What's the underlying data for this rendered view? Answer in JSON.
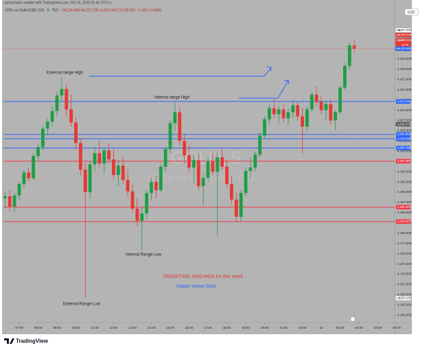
{
  "header": {
    "author_line": "azharshahir created with TradingView.com, Oct 16, 2025 01:41 UTC+1",
    "symbol": "CFDs on Gold (US$ / OZ) · 5 · TVC",
    "ohlc": "O4,226.400 H4,227.200 L4,224.300 C4,225.010 −1.426 (−0.03%)"
  },
  "chart_data": {
    "type": "candlestick",
    "x": [
      "06:15",
      "06:30",
      "06:45",
      "07:00",
      "07:15",
      "07:30",
      "07:45",
      "08:00",
      "08:15",
      "08:30",
      "08:45",
      "09:00",
      "09:15",
      "09:30",
      "09:45",
      "10:00",
      "10:15",
      "10:30",
      "10:45",
      "11:00",
      "11:15",
      "11:30",
      "11:45",
      "12:00",
      "12:15",
      "12:30",
      "12:45",
      "13:00",
      "13:15",
      "13:30",
      "13:45",
      "14:00",
      "14:15",
      "14:30",
      "14:45",
      "15:00",
      "15:15",
      "15:30",
      "15:45",
      "16:00",
      "16:15",
      "16:30",
      "16:45",
      "17:00",
      "17:15",
      "17:30",
      "17:45",
      "18:00",
      "18:15",
      "18:30",
      "18:45",
      "19:00",
      "19:15",
      "19:30",
      "19:45",
      "20:00",
      "20:15",
      "20:30",
      "20:45",
      "21:00",
      "21:15",
      "21:30",
      "21:45",
      "23:00",
      "23:15",
      "23:30",
      "23:45",
      "16",
      "00:15",
      "00:30",
      "00:45",
      "01:00",
      "01:15",
      "01:30",
      "01:45",
      "02:00",
      "02:15",
      "02:30",
      "02:45",
      "03:00",
      "03:15",
      "03:30",
      "03:45",
      "04:00"
    ],
    "open": [
      4188.5,
      4189.0,
      4186.5,
      4189.2,
      4192.0,
      4194.8,
      4193.4,
      4198.8,
      4201.0,
      4205.5,
      4207.2,
      4209.8,
      4213.6,
      4215.2,
      4210.2,
      4207.0,
      4202.0,
      4195.5,
      4190.0,
      4196.8,
      4199.5,
      4197.0,
      4200.2,
      4198.0,
      4194.2,
      4196.5,
      4193.0,
      4190.2,
      4186.0,
      4183.0,
      4184.8,
      4189.8,
      4192.5,
      4190.5,
      4196.2,
      4200.5,
      4206.8,
      4209.5,
      4202.5,
      4199.0,
      4196.0,
      4197.8,
      4191.5,
      4193.5,
      4197.5,
      4195.0,
      4198.5,
      4196.2,
      4192.0,
      4188.2,
      4184.0,
      4189.8,
      4195.2,
      4196.0,
      4199.2,
      4203.8,
      4207.8,
      4210.5,
      4209.0,
      4210.2,
      4208.0,
      4209.5,
      4211.2,
      4208.5,
      4206.0,
      4210.2,
      4213.8,
      4212.0,
      4210.0,
      4211.5,
      4207.5,
      4209.5,
      4215.5,
      4220.8,
      4225.8,
      null,
      null,
      null,
      null,
      null,
      null,
      null,
      null,
      null
    ],
    "high": [
      4190.2,
      4190.5,
      4189.8,
      4192.6,
      4195.5,
      4196.0,
      4199.5,
      4201.8,
      4206.2,
      4208.0,
      4211.0,
      4214.5,
      4217.9,
      4216.4,
      4213.8,
      4208.2,
      4203.0,
      4197.2,
      4197.5,
      4201.2,
      4202.5,
      4201.0,
      4202.0,
      4200.5,
      4197.8,
      4198.5,
      4195.5,
      4192.0,
      4188.5,
      4186.5,
      4190.5,
      4193.5,
      4194.0,
      4197.0,
      4201.0,
      4207.5,
      4212.0,
      4210.8,
      4204.0,
      4201.5,
      4199.0,
      4199.5,
      4194.5,
      4198.5,
      4200.0,
      4199.8,
      4200.8,
      4198.0,
      4194.0,
      4190.0,
      4190.5,
      4196.0,
      4198.5,
      4200.0,
      4204.5,
      4208.5,
      4211.5,
      4212.8,
      4211.0,
      4211.5,
      4210.5,
      4212.5,
      4212.0,
      4210.5,
      4211.0,
      4214.5,
      4215.8,
      4213.5,
      4212.5,
      4212.8,
      4210.0,
      4216.0,
      4221.5,
      4226.5,
      4227.2,
      null,
      null,
      null,
      null,
      null,
      null,
      null,
      null,
      null
    ],
    "low": [
      4186.0,
      4185.2,
      4185.0,
      4188.0,
      4191.0,
      4192.5,
      4193.0,
      4197.5,
      4200.2,
      4203.8,
      4206.0,
      4208.5,
      4212.0,
      4208.5,
      4206.0,
      4200.5,
      4194.0,
      4164.16,
      4188.5,
      4195.0,
      4196.0,
      4194.5,
      4197.0,
      4193.0,
      4191.5,
      4192.0,
      4189.0,
      4185.0,
      4181.8,
      4175.8,
      4183.5,
      4188.0,
      4188.5,
      4190.0,
      4195.0,
      4199.5,
      4205.0,
      4201.5,
      4197.0,
      4195.0,
      4192.0,
      4190.5,
      4186.8,
      4192.5,
      4194.0,
      4179.2,
      4195.5,
      4191.0,
      4187.0,
      4182.6,
      4183.0,
      4189.0,
      4193.5,
      4195.0,
      4198.5,
      4203.0,
      4206.5,
      4208.0,
      4206.8,
      4207.0,
      4206.5,
      4208.0,
      4207.5,
      4199.5,
      4205.0,
      4209.5,
      4211.0,
      4209.0,
      4207.5,
      4206.5,
      4205.2,
      4209.0,
      4215.0,
      4220.0,
      4224.0,
      null,
      null,
      null,
      null,
      null,
      null,
      null,
      null,
      null
    ],
    "close": [
      4189.0,
      4186.5,
      4189.2,
      4192.0,
      4194.8,
      4193.4,
      4198.8,
      4201.0,
      4205.5,
      4207.2,
      4209.8,
      4213.6,
      4215.2,
      4210.2,
      4207.0,
      4202.0,
      4195.5,
      4190.0,
      4196.8,
      4199.5,
      4197.0,
      4200.2,
      4198.0,
      4194.2,
      4196.5,
      4193.0,
      4190.2,
      4186.0,
      4183.0,
      4184.8,
      4189.8,
      4192.5,
      4190.5,
      4196.2,
      4200.5,
      4206.8,
      4209.5,
      4202.5,
      4199.0,
      4196.0,
      4197.8,
      4191.5,
      4193.5,
      4197.5,
      4195.0,
      4198.5,
      4196.2,
      4192.0,
      4188.2,
      4184.0,
      4189.8,
      4195.2,
      4196.0,
      4199.2,
      4203.8,
      4207.8,
      4210.5,
      4209.0,
      4210.2,
      4208.0,
      4209.5,
      4211.2,
      4208.5,
      4206.0,
      4210.2,
      4213.8,
      4212.0,
      4210.0,
      4211.5,
      4207.5,
      4209.5,
      4215.5,
      4220.8,
      4225.8,
      4225.01,
      null,
      null,
      null,
      null,
      null,
      null,
      null,
      null,
      null
    ],
    "up_color": "#1f9d45",
    "down_color": "#e53935",
    "ylim": [
      4158.2,
      4235.2
    ],
    "yticks": [
      {
        "value": 4160,
        "label": "4,160.000"
      },
      {
        "value": 4162.5,
        "label": "4,162.500"
      },
      {
        "value": 4165,
        "label": "4,165.000"
      },
      {
        "value": 4167.5,
        "label": "4,167.500"
      },
      {
        "value": 4170,
        "label": "4,170.000"
      },
      {
        "value": 4172.5,
        "label": "4,172.500"
      },
      {
        "value": 4175,
        "label": "4,175.000"
      },
      {
        "value": 4177.5,
        "label": "4,177.500"
      },
      {
        "value": 4180,
        "label": "4,180.000"
      },
      {
        "value": 4182.5,
        "label": "4,182.500"
      },
      {
        "value": 4185,
        "label": "4,185.000"
      },
      {
        "value": 4187.5,
        "label": "4,187.500"
      },
      {
        "value": 4190,
        "label": "4,190.000"
      },
      {
        "value": 4192.5,
        "label": "4,192.500"
      },
      {
        "value": 4195,
        "label": "4,195.000"
      },
      {
        "value": 4197.5,
        "label": "4,197.500"
      },
      {
        "value": 4200,
        "label": "4,200.000"
      },
      {
        "value": 4202.5,
        "label": "4,202.500"
      },
      {
        "value": 4205,
        "label": "4,205.000"
      },
      {
        "value": 4207.5,
        "label": "4,207.500"
      },
      {
        "value": 4210,
        "label": "4,210.000"
      },
      {
        "value": 4212.5,
        "label": "4,212.500"
      },
      {
        "value": 4215,
        "label": "4,215.000"
      },
      {
        "value": 4217.5,
        "label": "4,217.500"
      },
      {
        "value": 4220,
        "label": "4,220.000"
      },
      {
        "value": 4222.5,
        "label": "4,222.500"
      },
      {
        "value": 4225,
        "label": "4,225.000"
      },
      {
        "value": 4227.5,
        "label": "4,227.500"
      }
    ],
    "xticks": [
      "07:00",
      "08:00",
      "09:00",
      "10:00",
      "11:00",
      "12:00",
      "13:00",
      "14:00",
      "15:00",
      "16:00",
      "17:00",
      "18:00",
      "19:00",
      "20:00",
      "21:00",
      "23:00",
      "16",
      "01:00",
      "02:00",
      "03:00",
      "04:00"
    ],
    "grid": false,
    "currency": "USD",
    "price_lines": [
      {
        "value": 4212.118,
        "label": "4,212.118",
        "color": "#2962ff"
      },
      {
        "value": 4204.092,
        "label": "4,204.092",
        "color": "#2962ff"
      },
      {
        "value": 4203.038,
        "label": "4,203.038",
        "color": "#2962ff"
      },
      {
        "value": 4200.756,
        "label": "4,200.756",
        "color": "#2962ff"
      },
      {
        "value": 4197.556,
        "label": "4,197.556",
        "color": "#f23645"
      },
      {
        "value": 4186.343,
        "label": "4,186.343",
        "color": "#f23645"
      },
      {
        "value": 4182.827,
        "label": "4,182.827",
        "color": "#f23645"
      }
    ],
    "price_markers": [
      {
        "value": 4206.575,
        "label": "4,206.575",
        "color": "#555555"
      }
    ],
    "quote": {
      "high": {
        "tag": "High",
        "value": 4227.2,
        "label": "4,227.200"
      },
      "ask": {
        "tag": "Ask",
        "value": 4225.13,
        "label": "4,225.130"
      },
      "last": {
        "tag": "GOLD",
        "value": 4225.01,
        "label": "4,225.010",
        "countdown": "03:46"
      },
      "bid": {
        "tag": "Bid",
        "value": 4224.84,
        "label": "4,224.840"
      },
      "low": {
        "tag": "Low",
        "value": 4164.16,
        "label": "4,164.160"
      }
    },
    "annotations": [
      {
        "text": "External range High",
        "color": "#1a1a1a"
      },
      {
        "text": "Internal range High",
        "color": "#1a1a1a"
      },
      {
        "text": "Internal Range Low",
        "color": "#1a1a1a"
      },
      {
        "text": "External Range Low",
        "color": "#1a1a1a"
      },
      {
        "text": "TARGETING 4300-4400 for this week",
        "color": "#e8342f"
      },
      {
        "text": "Happy swing Guys",
        "color": "#2962ff"
      }
    ],
    "watermark": {
      "symbol": "GOLD, 5",
      "description": "CFDs on Gold (US$ / OZ)"
    }
  },
  "footer": {
    "brand": "TradingView"
  }
}
